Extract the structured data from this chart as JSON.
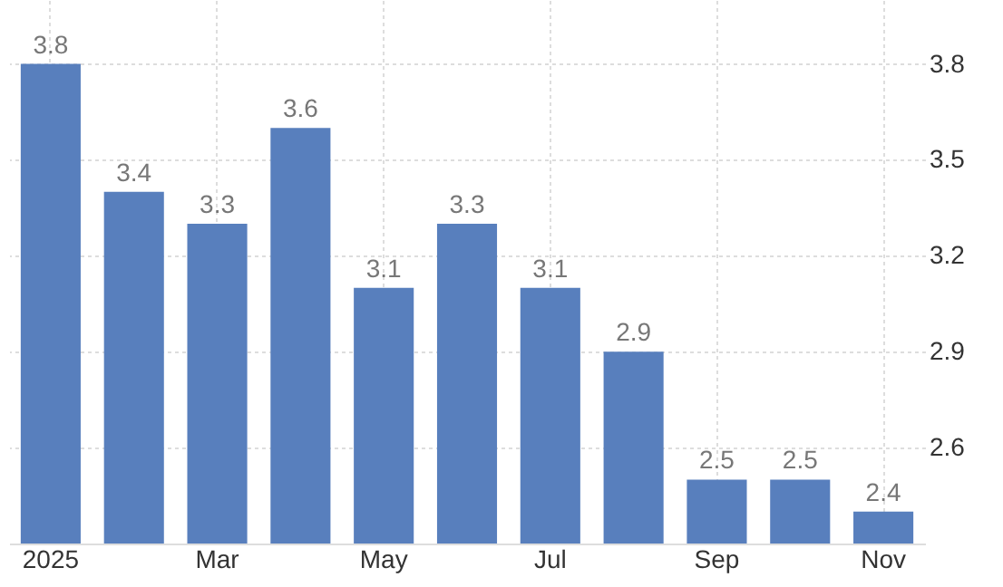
{
  "chart_data": {
    "type": "bar",
    "categories": [
      "2025",
      null,
      "Mar",
      null,
      "May",
      null,
      "Jul",
      null,
      "Sep",
      null,
      "Nov"
    ],
    "values": [
      3.8,
      3.4,
      3.3,
      3.6,
      3.1,
      3.3,
      3.1,
      2.9,
      2.5,
      2.5,
      2.4
    ],
    "color": "#587fbd",
    "ylim": [
      2.3,
      4.0
    ],
    "yticks": [
      2.6,
      2.9,
      3.2,
      3.5,
      3.8
    ],
    "data_labels": true,
    "grid": true
  }
}
